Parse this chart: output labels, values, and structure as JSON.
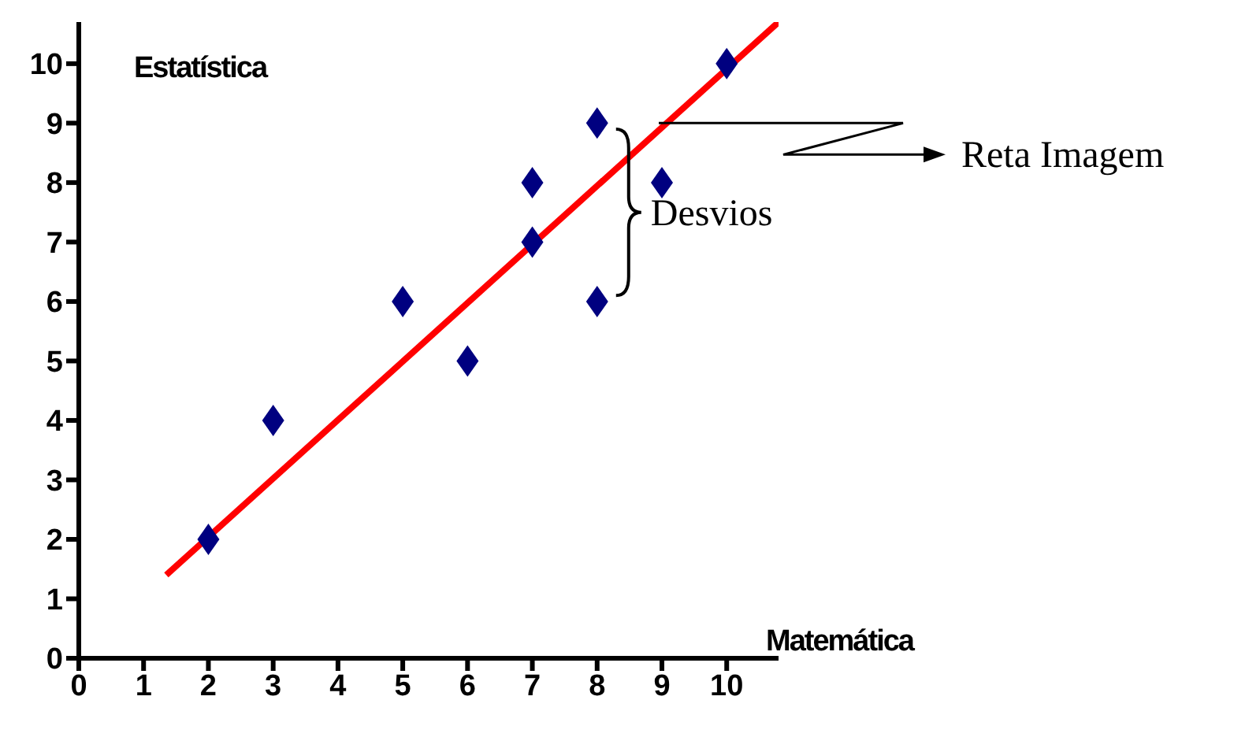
{
  "chart_data": {
    "type": "scatter",
    "xlabel": "Matemática",
    "ylabel": "Estatística",
    "x": [
      2,
      3,
      5,
      6,
      7,
      7,
      8,
      8,
      9,
      10
    ],
    "xlim": [
      0,
      10.8
    ],
    "ylim": [
      0,
      10.7
    ],
    "xticks": [
      0,
      1,
      2,
      3,
      4,
      5,
      6,
      7,
      8,
      9,
      10
    ],
    "yticks": [
      0,
      1,
      2,
      3,
      4,
      5,
      6,
      7,
      8,
      9,
      10
    ],
    "grid": false,
    "legend": false,
    "annotations": [
      "Reta Imagem",
      "Desvios"
    ],
    "series": [
      {
        "marker": "diamond",
        "color": "#000080",
        "values": [
          2,
          4,
          6,
          5,
          8,
          7,
          9,
          6,
          8,
          10
        ]
      },
      {
        "type": "line",
        "color": "#ff0000",
        "x": [
          1.35,
          10.8
        ],
        "values": [
          1.4,
          10.7
        ]
      }
    ]
  }
}
